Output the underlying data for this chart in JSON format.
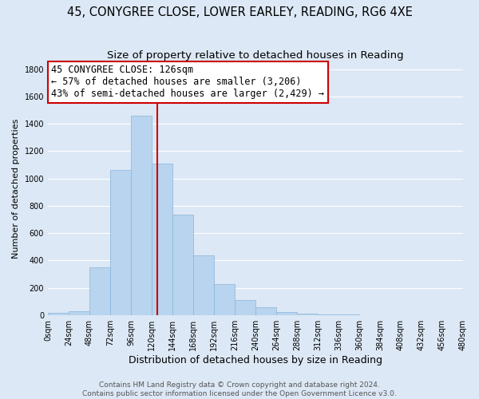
{
  "title": "45, CONYGREE CLOSE, LOWER EARLEY, READING, RG6 4XE",
  "subtitle": "Size of property relative to detached houses in Reading",
  "xlabel": "Distribution of detached houses by size in Reading",
  "ylabel": "Number of detached properties",
  "bar_left_edges": [
    0,
    24,
    48,
    72,
    96,
    120,
    144,
    168,
    192,
    216,
    240,
    264,
    288,
    312,
    336,
    360,
    384,
    408,
    432,
    456
  ],
  "bar_heights": [
    15,
    30,
    350,
    1060,
    1460,
    1110,
    735,
    435,
    225,
    110,
    55,
    20,
    10,
    5,
    2,
    1,
    0,
    0,
    0,
    0
  ],
  "bar_color": "#b8d4ee",
  "bar_edgecolor": "#8ab4d8",
  "vline_x": 126,
  "vline_color": "#cc0000",
  "annotation_title": "45 CONYGREE CLOSE: 126sqm",
  "annotation_line1": "← 57% of detached houses are smaller (3,206)",
  "annotation_line2": "43% of semi-detached houses are larger (2,429) →",
  "annotation_box_facecolor": "#ffffff",
  "annotation_box_edgecolor": "#cc0000",
  "ylim": [
    0,
    1850
  ],
  "xlim": [
    0,
    480
  ],
  "tick_positions": [
    0,
    24,
    48,
    72,
    96,
    120,
    144,
    168,
    192,
    216,
    240,
    264,
    288,
    312,
    336,
    360,
    384,
    408,
    432,
    456,
    480
  ],
  "tick_labels": [
    "0sqm",
    "24sqm",
    "48sqm",
    "72sqm",
    "96sqm",
    "120sqm",
    "144sqm",
    "168sqm",
    "192sqm",
    "216sqm",
    "240sqm",
    "264sqm",
    "288sqm",
    "312sqm",
    "336sqm",
    "360sqm",
    "384sqm",
    "408sqm",
    "432sqm",
    "456sqm",
    "480sqm"
  ],
  "ytick_positions": [
    0,
    200,
    400,
    600,
    800,
    1000,
    1200,
    1400,
    1600,
    1800
  ],
  "ytick_labels": [
    "0",
    "200",
    "400",
    "600",
    "800",
    "1000",
    "1200",
    "1400",
    "1600",
    "1800"
  ],
  "footer_line1": "Contains HM Land Registry data © Crown copyright and database right 2024.",
  "footer_line2": "Contains public sector information licensed under the Open Government Licence v3.0.",
  "background_color": "#dce8f5",
  "plot_bg_color": "#dce8f5",
  "grid_color": "#ffffff",
  "title_fontsize": 10.5,
  "subtitle_fontsize": 9.5,
  "xlabel_fontsize": 9,
  "ylabel_fontsize": 8,
  "tick_fontsize": 7,
  "footer_fontsize": 6.5,
  "annotation_fontsize": 8.5
}
